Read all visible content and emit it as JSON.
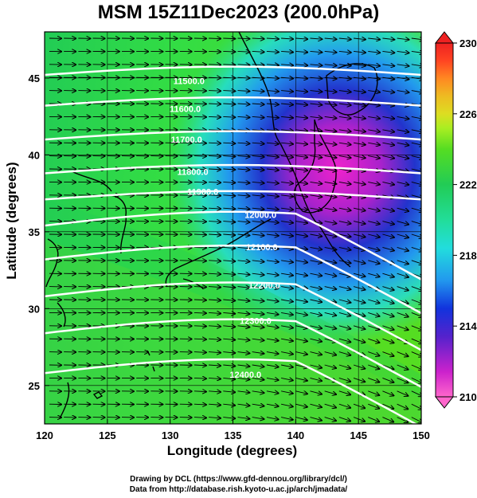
{
  "title": "MSM 15Z11Dec2023 (200.0hPa)",
  "axes": {
    "xlabel": "Longitude (degrees)",
    "ylabel": "Latitude  (degrees)",
    "x_range": [
      120,
      150
    ],
    "y_range": [
      22.5,
      48
    ],
    "x_ticks": [
      "120",
      "125",
      "130",
      "135",
      "140",
      "145",
      "150"
    ],
    "y_ticks": [
      "25",
      "30",
      "35",
      "40",
      "45"
    ]
  },
  "colorbar": {
    "range": [
      210,
      230
    ],
    "ticks": [
      "210",
      "214",
      "218",
      "222",
      "226",
      "230"
    ],
    "colors": [
      "#ff66cc",
      "#cc22cc",
      "#5522cc",
      "#1133dd",
      "#2299ee",
      "#22dddd",
      "#22dd99",
      "#22cc55",
      "#55dd22",
      "#aaee22",
      "#dddd22",
      "#eebb22",
      "#ff8822",
      "#ff4422",
      "#ee2222"
    ]
  },
  "contour_labels": [
    {
      "text": "11500.0",
      "lon": 131.5,
      "lat": 44.6
    },
    {
      "text": "11600.0",
      "lon": 131.2,
      "lat": 42.8
    },
    {
      "text": "11700.0",
      "lon": 131.3,
      "lat": 40.8
    },
    {
      "text": "11800.0",
      "lon": 131.8,
      "lat": 38.7
    },
    {
      "text": "11900.0",
      "lon": 132.6,
      "lat": 37.4
    },
    {
      "text": "12000.0",
      "lon": 137.2,
      "lat": 35.9
    },
    {
      "text": "12100.0",
      "lon": 137.3,
      "lat": 33.8
    },
    {
      "text": "12200.0",
      "lon": 137.5,
      "lat": 31.3
    },
    {
      "text": "12300.0",
      "lon": 136.8,
      "lat": 29.0
    },
    {
      "text": "12400.0",
      "lon": 136.0,
      "lat": 25.5
    }
  ],
  "credits": {
    "line1": "Drawing by DCL (https://www.gfd-dennou.org/library/dcl/)",
    "line2": "Data from http://database.rish.kyoto-u.ac.jp/arch/jmadata/"
  }
}
